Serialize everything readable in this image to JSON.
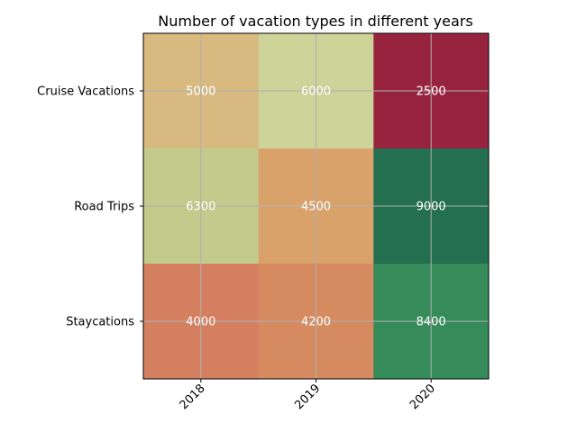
{
  "chart_data": {
    "type": "heatmap",
    "title": "Number of vacation types in different years",
    "x_categories": [
      "2018",
      "2019",
      "2020"
    ],
    "y_categories": [
      "Cruise Vacations",
      "Road Trips",
      "Staycations"
    ],
    "values": [
      [
        5000,
        6000,
        2500
      ],
      [
        6300,
        4500,
        9000
      ],
      [
        4000,
        4200,
        8400
      ]
    ],
    "cell_colors": [
      [
        "#d8ba80",
        "#ccd49a",
        "#98233f"
      ],
      [
        "#c2cb8b",
        "#d9a26b",
        "#236f50"
      ],
      [
        "#d48060",
        "#d68a5f",
        "#358b5a"
      ]
    ],
    "grid": true,
    "colormap": "RdYlGn"
  }
}
